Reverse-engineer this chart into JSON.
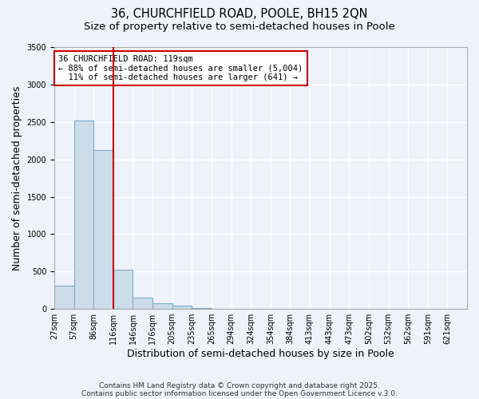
{
  "title_line1": "36, CHURCHFIELD ROAD, POOLE, BH15 2QN",
  "title_line2": "Size of property relative to semi-detached houses in Poole",
  "xlabel": "Distribution of semi-detached houses by size in Poole",
  "ylabel": "Number of semi-detached properties",
  "bin_labels": [
    "27sqm",
    "57sqm",
    "86sqm",
    "116sqm",
    "146sqm",
    "176sqm",
    "205sqm",
    "235sqm",
    "265sqm",
    "294sqm",
    "324sqm",
    "354sqm",
    "384sqm",
    "413sqm",
    "443sqm",
    "473sqm",
    "502sqm",
    "532sqm",
    "562sqm",
    "591sqm",
    "621sqm"
  ],
  "bin_edges": [
    0,
    1,
    2,
    3,
    4,
    5,
    6,
    7,
    8,
    9,
    10,
    11,
    12,
    13,
    14,
    15,
    16,
    17,
    18,
    19,
    20,
    21
  ],
  "bar_values": [
    310,
    2520,
    2120,
    520,
    150,
    75,
    40,
    10,
    0,
    0,
    0,
    0,
    0,
    0,
    0,
    0,
    0,
    0,
    0,
    0,
    0
  ],
  "bar_color": "#ccdce8",
  "bar_edgecolor": "#7aadcc",
  "property_bin": 3,
  "property_line_color": "#cc0000",
  "annotation_text": "36 CHURCHFIELD ROAD: 119sqm\n← 88% of semi-detached houses are smaller (5,004)\n  11% of semi-detached houses are larger (641) →",
  "annotation_box_color": "#ffffff",
  "annotation_box_edgecolor": "#cc0000",
  "ylim": [
    0,
    3500
  ],
  "yticks": [
    0,
    500,
    1000,
    1500,
    2000,
    2500,
    3000,
    3500
  ],
  "background_color": "#eef2fb",
  "grid_color": "#ffffff",
  "footer_line1": "Contains HM Land Registry data © Crown copyright and database right 2025.",
  "footer_line2": "Contains public sector information licensed under the Open Government Licence v.3.0.",
  "title_fontsize": 10.5,
  "subtitle_fontsize": 9.5,
  "axis_label_fontsize": 9,
  "tick_fontsize": 7,
  "annotation_fontsize": 7.5,
  "footer_fontsize": 6.5
}
